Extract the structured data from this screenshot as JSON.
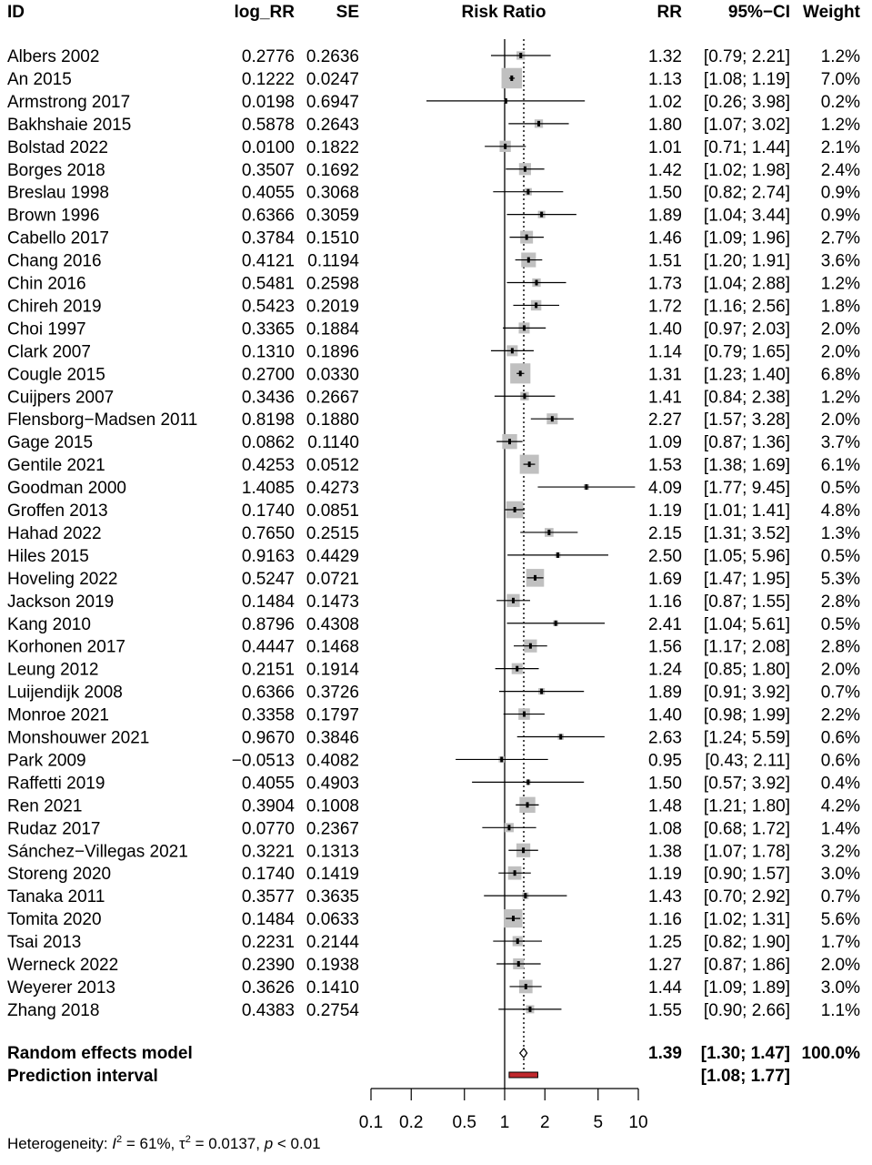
{
  "chart_data": {
    "type": "forest",
    "headers": {
      "id": "ID",
      "log_rr": "log_RR",
      "se": "SE",
      "plot": "Risk Ratio",
      "rr": "RR",
      "ci": "95%−CI",
      "weight": "Weight"
    },
    "x_scale": "log",
    "xlim": [
      0.1,
      10
    ],
    "x_ticks": [
      0.1,
      0.2,
      0.5,
      1,
      2,
      5,
      10
    ],
    "x_tick_labels": [
      "0.1",
      "0.2",
      "0.5",
      "1",
      "2",
      "5",
      "10"
    ],
    "null_line": 1,
    "studies": [
      {
        "id": "Albers 2002",
        "log_rr": "0.2776",
        "se": "0.2636",
        "rr": 1.32,
        "lower": 0.79,
        "upper": 2.21,
        "rr_text": "1.32",
        "ci_text": "[0.79; 2.21]",
        "weight": 1.2,
        "weight_text": "1.2%"
      },
      {
        "id": "An 2015",
        "log_rr": "0.1222",
        "se": "0.0247",
        "rr": 1.13,
        "lower": 1.08,
        "upper": 1.19,
        "rr_text": "1.13",
        "ci_text": "[1.08; 1.19]",
        "weight": 7.0,
        "weight_text": "7.0%"
      },
      {
        "id": "Armstrong 2017",
        "log_rr": "0.0198",
        "se": "0.6947",
        "rr": 1.02,
        "lower": 0.26,
        "upper": 3.98,
        "rr_text": "1.02",
        "ci_text": "[0.26; 3.98]",
        "weight": 0.2,
        "weight_text": "0.2%"
      },
      {
        "id": "Bakhshaie 2015",
        "log_rr": "0.5878",
        "se": "0.2643",
        "rr": 1.8,
        "lower": 1.07,
        "upper": 3.02,
        "rr_text": "1.80",
        "ci_text": "[1.07; 3.02]",
        "weight": 1.2,
        "weight_text": "1.2%"
      },
      {
        "id": "Bolstad 2022",
        "log_rr": "0.0100",
        "se": "0.1822",
        "rr": 1.01,
        "lower": 0.71,
        "upper": 1.44,
        "rr_text": "1.01",
        "ci_text": "[0.71; 1.44]",
        "weight": 2.1,
        "weight_text": "2.1%"
      },
      {
        "id": "Borges 2018",
        "log_rr": "0.3507",
        "se": "0.1692",
        "rr": 1.42,
        "lower": 1.02,
        "upper": 1.98,
        "rr_text": "1.42",
        "ci_text": "[1.02; 1.98]",
        "weight": 2.4,
        "weight_text": "2.4%"
      },
      {
        "id": "Breslau 1998",
        "log_rr": "0.4055",
        "se": "0.3068",
        "rr": 1.5,
        "lower": 0.82,
        "upper": 2.74,
        "rr_text": "1.50",
        "ci_text": "[0.82; 2.74]",
        "weight": 0.9,
        "weight_text": "0.9%"
      },
      {
        "id": "Brown 1996",
        "log_rr": "0.6366",
        "se": "0.3059",
        "rr": 1.89,
        "lower": 1.04,
        "upper": 3.44,
        "rr_text": "1.89",
        "ci_text": "[1.04; 3.44]",
        "weight": 0.9,
        "weight_text": "0.9%"
      },
      {
        "id": "Cabello 2017",
        "log_rr": "0.3784",
        "se": "0.1510",
        "rr": 1.46,
        "lower": 1.09,
        "upper": 1.96,
        "rr_text": "1.46",
        "ci_text": "[1.09; 1.96]",
        "weight": 2.7,
        "weight_text": "2.7%"
      },
      {
        "id": "Chang 2016",
        "log_rr": "0.4121",
        "se": "0.1194",
        "rr": 1.51,
        "lower": 1.2,
        "upper": 1.91,
        "rr_text": "1.51",
        "ci_text": "[1.20; 1.91]",
        "weight": 3.6,
        "weight_text": "3.6%"
      },
      {
        "id": "Chin 2016",
        "log_rr": "0.5481",
        "se": "0.2598",
        "rr": 1.73,
        "lower": 1.04,
        "upper": 2.88,
        "rr_text": "1.73",
        "ci_text": "[1.04; 2.88]",
        "weight": 1.2,
        "weight_text": "1.2%"
      },
      {
        "id": "Chireh 2019",
        "log_rr": "0.5423",
        "se": "0.2019",
        "rr": 1.72,
        "lower": 1.16,
        "upper": 2.56,
        "rr_text": "1.72",
        "ci_text": "[1.16; 2.56]",
        "weight": 1.8,
        "weight_text": "1.8%"
      },
      {
        "id": "Choi 1997",
        "log_rr": "0.3365",
        "se": "0.1884",
        "rr": 1.4,
        "lower": 0.97,
        "upper": 2.03,
        "rr_text": "1.40",
        "ci_text": "[0.97; 2.03]",
        "weight": 2.0,
        "weight_text": "2.0%"
      },
      {
        "id": "Clark 2007",
        "log_rr": "0.1310",
        "se": "0.1896",
        "rr": 1.14,
        "lower": 0.79,
        "upper": 1.65,
        "rr_text": "1.14",
        "ci_text": "[0.79; 1.65]",
        "weight": 2.0,
        "weight_text": "2.0%"
      },
      {
        "id": "Cougle 2015",
        "log_rr": "0.2700",
        "se": "0.0330",
        "rr": 1.31,
        "lower": 1.23,
        "upper": 1.4,
        "rr_text": "1.31",
        "ci_text": "[1.23; 1.40]",
        "weight": 6.8,
        "weight_text": "6.8%"
      },
      {
        "id": "Cuijpers 2007",
        "log_rr": "0.3436",
        "se": "0.2667",
        "rr": 1.41,
        "lower": 0.84,
        "upper": 2.38,
        "rr_text": "1.41",
        "ci_text": "[0.84; 2.38]",
        "weight": 1.2,
        "weight_text": "1.2%"
      },
      {
        "id": "Flensborg−Madsen 2011",
        "log_rr": "0.8198",
        "se": "0.1880",
        "rr": 2.27,
        "lower": 1.57,
        "upper": 3.28,
        "rr_text": "2.27",
        "ci_text": "[1.57; 3.28]",
        "weight": 2.0,
        "weight_text": "2.0%"
      },
      {
        "id": "Gage 2015",
        "log_rr": "0.0862",
        "se": "0.1140",
        "rr": 1.09,
        "lower": 0.87,
        "upper": 1.36,
        "rr_text": "1.09",
        "ci_text": "[0.87; 1.36]",
        "weight": 3.7,
        "weight_text": "3.7%"
      },
      {
        "id": "Gentile 2021",
        "log_rr": "0.4253",
        "se": "0.0512",
        "rr": 1.53,
        "lower": 1.38,
        "upper": 1.69,
        "rr_text": "1.53",
        "ci_text": "[1.38; 1.69]",
        "weight": 6.1,
        "weight_text": "6.1%"
      },
      {
        "id": "Goodman 2000",
        "log_rr": "1.4085",
        "se": "0.4273",
        "rr": 4.09,
        "lower": 1.77,
        "upper": 9.45,
        "rr_text": "4.09",
        "ci_text": "[1.77; 9.45]",
        "weight": 0.5,
        "weight_text": "0.5%"
      },
      {
        "id": "Groffen 2013",
        "log_rr": "0.1740",
        "se": "0.0851",
        "rr": 1.19,
        "lower": 1.01,
        "upper": 1.41,
        "rr_text": "1.19",
        "ci_text": "[1.01; 1.41]",
        "weight": 4.8,
        "weight_text": "4.8%"
      },
      {
        "id": "Hahad 2022",
        "log_rr": "0.7650",
        "se": "0.2515",
        "rr": 2.15,
        "lower": 1.31,
        "upper": 3.52,
        "rr_text": "2.15",
        "ci_text": "[1.31; 3.52]",
        "weight": 1.3,
        "weight_text": "1.3%"
      },
      {
        "id": "Hiles 2015",
        "log_rr": "0.9163",
        "se": "0.4429",
        "rr": 2.5,
        "lower": 1.05,
        "upper": 5.96,
        "rr_text": "2.50",
        "ci_text": "[1.05; 5.96]",
        "weight": 0.5,
        "weight_text": "0.5%"
      },
      {
        "id": "Hoveling 2022",
        "log_rr": "0.5247",
        "se": "0.0721",
        "rr": 1.69,
        "lower": 1.47,
        "upper": 1.95,
        "rr_text": "1.69",
        "ci_text": "[1.47; 1.95]",
        "weight": 5.3,
        "weight_text": "5.3%"
      },
      {
        "id": "Jackson 2019",
        "log_rr": "0.1484",
        "se": "0.1473",
        "rr": 1.16,
        "lower": 0.87,
        "upper": 1.55,
        "rr_text": "1.16",
        "ci_text": "[0.87; 1.55]",
        "weight": 2.8,
        "weight_text": "2.8%"
      },
      {
        "id": "Kang 2010",
        "log_rr": "0.8796",
        "se": "0.4308",
        "rr": 2.41,
        "lower": 1.04,
        "upper": 5.61,
        "rr_text": "2.41",
        "ci_text": "[1.04; 5.61]",
        "weight": 0.5,
        "weight_text": "0.5%"
      },
      {
        "id": "Korhonen 2017",
        "log_rr": "0.4447",
        "se": "0.1468",
        "rr": 1.56,
        "lower": 1.17,
        "upper": 2.08,
        "rr_text": "1.56",
        "ci_text": "[1.17; 2.08]",
        "weight": 2.8,
        "weight_text": "2.8%"
      },
      {
        "id": "Leung 2012",
        "log_rr": "0.2151",
        "se": "0.1914",
        "rr": 1.24,
        "lower": 0.85,
        "upper": 1.8,
        "rr_text": "1.24",
        "ci_text": "[0.85; 1.80]",
        "weight": 2.0,
        "weight_text": "2.0%"
      },
      {
        "id": "Luijendijk 2008",
        "log_rr": "0.6366",
        "se": "0.3726",
        "rr": 1.89,
        "lower": 0.91,
        "upper": 3.92,
        "rr_text": "1.89",
        "ci_text": "[0.91; 3.92]",
        "weight": 0.7,
        "weight_text": "0.7%"
      },
      {
        "id": "Monroe 2021",
        "log_rr": "0.3358",
        "se": "0.1797",
        "rr": 1.4,
        "lower": 0.98,
        "upper": 1.99,
        "rr_text": "1.40",
        "ci_text": "[0.98; 1.99]",
        "weight": 2.2,
        "weight_text": "2.2%"
      },
      {
        "id": "Monshouwer 2021",
        "log_rr": "0.9670",
        "se": "0.3846",
        "rr": 2.63,
        "lower": 1.24,
        "upper": 5.59,
        "rr_text": "2.63",
        "ci_text": "[1.24; 5.59]",
        "weight": 0.6,
        "weight_text": "0.6%"
      },
      {
        "id": "Park 2009",
        "log_rr": "−0.0513",
        "se": "0.4082",
        "rr": 0.95,
        "lower": 0.43,
        "upper": 2.11,
        "rr_text": "0.95",
        "ci_text": "[0.43; 2.11]",
        "weight": 0.6,
        "weight_text": "0.6%"
      },
      {
        "id": "Raffetti 2019",
        "log_rr": "0.4055",
        "se": "0.4903",
        "rr": 1.5,
        "lower": 0.57,
        "upper": 3.92,
        "rr_text": "1.50",
        "ci_text": "[0.57; 3.92]",
        "weight": 0.4,
        "weight_text": "0.4%"
      },
      {
        "id": "Ren 2021",
        "log_rr": "0.3904",
        "se": "0.1008",
        "rr": 1.48,
        "lower": 1.21,
        "upper": 1.8,
        "rr_text": "1.48",
        "ci_text": "[1.21; 1.80]",
        "weight": 4.2,
        "weight_text": "4.2%"
      },
      {
        "id": "Rudaz 2017",
        "log_rr": "0.0770",
        "se": "0.2367",
        "rr": 1.08,
        "lower": 0.68,
        "upper": 1.72,
        "rr_text": "1.08",
        "ci_text": "[0.68; 1.72]",
        "weight": 1.4,
        "weight_text": "1.4%"
      },
      {
        "id": "Sánchez−Villegas 2021",
        "log_rr": "0.3221",
        "se": "0.1313",
        "rr": 1.38,
        "lower": 1.07,
        "upper": 1.78,
        "rr_text": "1.38",
        "ci_text": "[1.07; 1.78]",
        "weight": 3.2,
        "weight_text": "3.2%"
      },
      {
        "id": "Storeng 2020",
        "log_rr": "0.1740",
        "se": "0.1419",
        "rr": 1.19,
        "lower": 0.9,
        "upper": 1.57,
        "rr_text": "1.19",
        "ci_text": "[0.90; 1.57]",
        "weight": 3.0,
        "weight_text": "3.0%"
      },
      {
        "id": "Tanaka 2011",
        "log_rr": "0.3577",
        "se": "0.3635",
        "rr": 1.43,
        "lower": 0.7,
        "upper": 2.92,
        "rr_text": "1.43",
        "ci_text": "[0.70; 2.92]",
        "weight": 0.7,
        "weight_text": "0.7%"
      },
      {
        "id": "Tomita 2020",
        "log_rr": "0.1484",
        "se": "0.0633",
        "rr": 1.16,
        "lower": 1.02,
        "upper": 1.31,
        "rr_text": "1.16",
        "ci_text": "[1.02; 1.31]",
        "weight": 5.6,
        "weight_text": "5.6%"
      },
      {
        "id": "Tsai 2013",
        "log_rr": "0.2231",
        "se": "0.2144",
        "rr": 1.25,
        "lower": 0.82,
        "upper": 1.9,
        "rr_text": "1.25",
        "ci_text": "[0.82; 1.90]",
        "weight": 1.7,
        "weight_text": "1.7%"
      },
      {
        "id": "Werneck 2022",
        "log_rr": "0.2390",
        "se": "0.1938",
        "rr": 1.27,
        "lower": 0.87,
        "upper": 1.86,
        "rr_text": "1.27",
        "ci_text": "[0.87; 1.86]",
        "weight": 2.0,
        "weight_text": "2.0%"
      },
      {
        "id": "Weyerer 2013",
        "log_rr": "0.3626",
        "se": "0.1410",
        "rr": 1.44,
        "lower": 1.09,
        "upper": 1.89,
        "rr_text": "1.44",
        "ci_text": "[1.09; 1.89]",
        "weight": 3.0,
        "weight_text": "3.0%"
      },
      {
        "id": "Zhang 2018",
        "log_rr": "0.4383",
        "se": "0.2754",
        "rr": 1.55,
        "lower": 0.9,
        "upper": 2.66,
        "rr_text": "1.55",
        "ci_text": "[0.90; 2.66]",
        "weight": 1.1,
        "weight_text": "1.1%"
      }
    ],
    "summary": {
      "label": "Random effects model",
      "rr": 1.39,
      "lower": 1.3,
      "upper": 1.47,
      "rr_text": "1.39",
      "ci_text": "[1.30; 1.47]",
      "weight_text": "100.0%"
    },
    "prediction": {
      "label": "Prediction interval",
      "lower": 1.08,
      "upper": 1.77,
      "ci_text": "[1.08; 1.77]"
    },
    "heterogeneity": {
      "prefix": "Heterogeneity: ",
      "i2_symbol": "I",
      "i2_value": " = 61%, ",
      "tau_symbol": "τ",
      "tau_value": " = 0.0137, ",
      "p_symbol": "p",
      "p_value": " < 0.01"
    },
    "colors": {
      "box": "#c0c0c0",
      "line": "#000000",
      "prediction_fill": "#c0282d"
    }
  }
}
